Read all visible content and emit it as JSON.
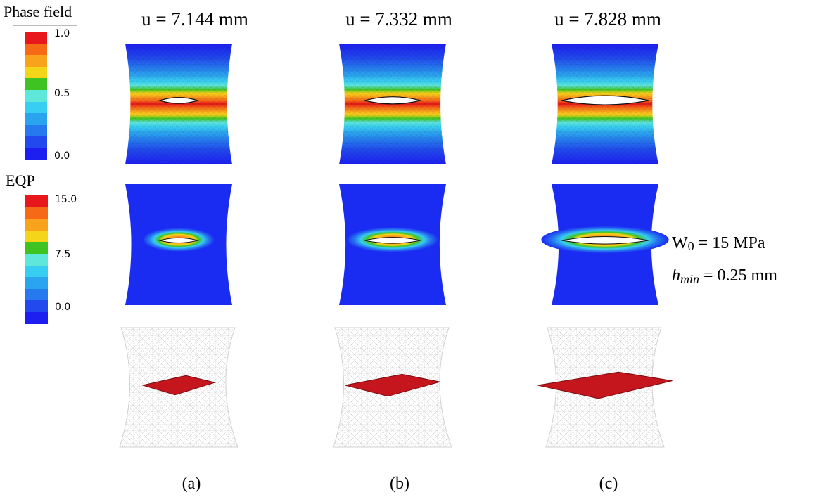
{
  "legends": {
    "phase": {
      "title": "Phase field",
      "ticks": [
        "1.0",
        "0.5",
        "0.0"
      ]
    },
    "eqp": {
      "title": "EQP",
      "ticks": [
        "15.0",
        "7.5",
        "0.0"
      ]
    }
  },
  "columns": [
    {
      "header": "u = 7.144 mm",
      "caption": "(a)",
      "crack_fraction": 0.22
    },
    {
      "header": "u = 7.332 mm",
      "caption": "(b)",
      "crack_fraction": 0.45
    },
    {
      "header": "u = 7.828 mm",
      "caption": "(c)",
      "crack_fraction": 0.85
    }
  ],
  "params": {
    "w0": {
      "symbol": "W",
      "sub": "0",
      "value": " = 15 MPa"
    },
    "hmin": {
      "symbol": "h",
      "sub": "min",
      "value": " = 0.25 mm"
    }
  },
  "colors": {
    "jet": [
      "#e8171b",
      "#f66a17",
      "#f9a21c",
      "#f4d51a",
      "#3fc323",
      "#5fe7da",
      "#38cdf2",
      "#2ba4f0",
      "#2679ee",
      "#2149ee",
      "#1d1ef0"
    ],
    "field_background": "#1a2bf2",
    "mesh": "#c8c8c8",
    "crack_surface": "#c4161c"
  }
}
